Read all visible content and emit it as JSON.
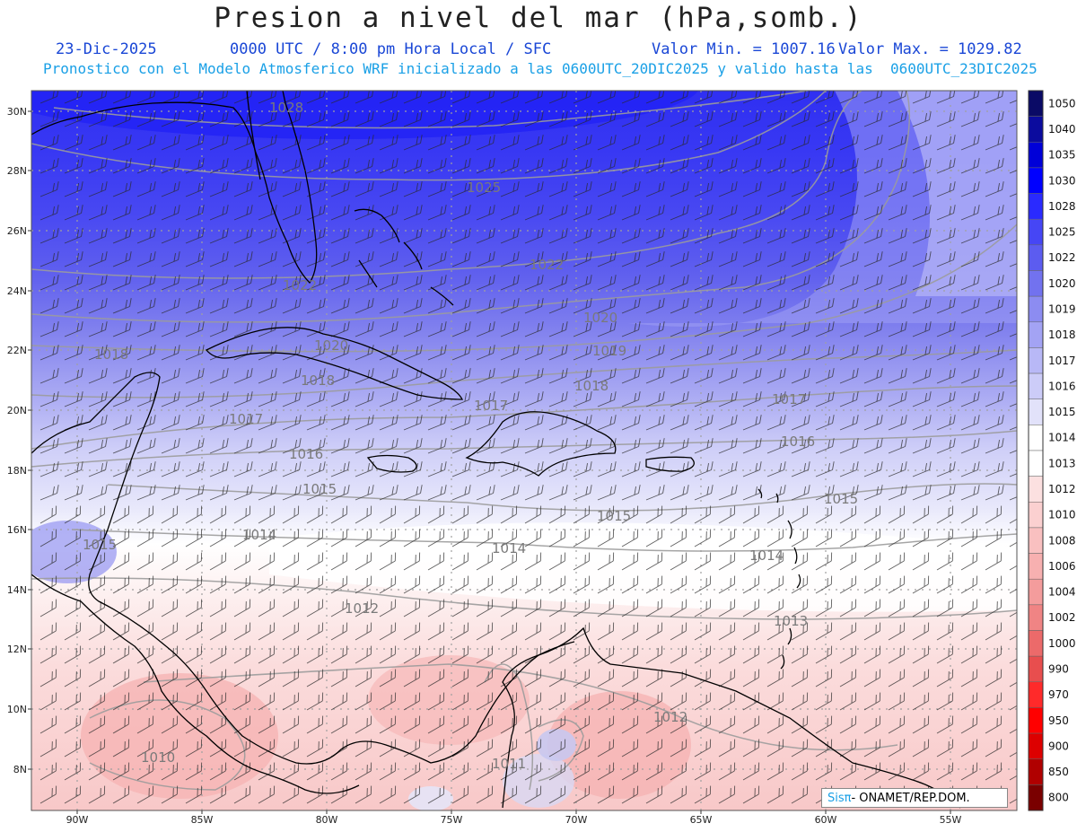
{
  "header": {
    "title": "Presion a nivel del mar (hPa,somb.)",
    "date": "23-Dic-2025",
    "time": "0000 UTC / 8:00 pm Hora Local / SFC",
    "valor_min": "Valor Min. = 1007.16",
    "valor_max": "Valor Max. = 1029.82",
    "description": "Pronostico con el Modelo Atmosferico WRF inicializado a las 0600UTC_20DIC2025 y valido hasta las  0600UTC_23DIC2025"
  },
  "map": {
    "lat_labels": [
      "30N",
      "28N",
      "26N",
      "24N",
      "22N",
      "20N",
      "18N",
      "16N",
      "14N",
      "12N",
      "10N",
      "8N"
    ],
    "lon_labels": [
      "90W",
      "85W",
      "80W",
      "75W",
      "70W",
      "65W",
      "60W",
      "55W"
    ],
    "isobar_labels": [
      {
        "text": "1028"
      },
      {
        "text": "1025"
      },
      {
        "text": "1022"
      },
      {
        "text": "1022"
      },
      {
        "text": "1020"
      },
      {
        "text": "1020"
      },
      {
        "text": "1019"
      },
      {
        "text": "1018"
      },
      {
        "text": "1018"
      },
      {
        "text": "1018"
      },
      {
        "text": "1017"
      },
      {
        "text": "1017"
      },
      {
        "text": "1017"
      },
      {
        "text": "1016"
      },
      {
        "text": "1016"
      },
      {
        "text": "1015"
      },
      {
        "text": "1015"
      },
      {
        "text": "1015"
      },
      {
        "text": "1015"
      },
      {
        "text": "1014"
      },
      {
        "text": "1014"
      },
      {
        "text": "1014"
      },
      {
        "text": "1013"
      },
      {
        "text": "1012"
      },
      {
        "text": "1012"
      },
      {
        "text": "1010"
      },
      {
        "text": "1011"
      }
    ]
  },
  "colorbar": {
    "levels": [
      "1050",
      "1040",
      "1035",
      "1030",
      "1028",
      "1025",
      "1022",
      "1020",
      "1019",
      "1018",
      "1017",
      "1016",
      "1015",
      "1014",
      "1013",
      "1012",
      "1010",
      "1008",
      "1006",
      "1004",
      "1002",
      "1000",
      "990",
      "970",
      "950",
      "900",
      "850",
      "800"
    ],
    "colors": [
      "#0a0a66",
      "#0b0b9e",
      "#0000d8",
      "#0000ff",
      "#2a2aff",
      "#4646f5",
      "#5c5cf0",
      "#7272ef",
      "#8c8cf1",
      "#a3a3f4",
      "#b8b8f6",
      "#ccccf8",
      "#e2e2fa",
      "#ffffff",
      "#ffffff",
      "#fce0e0",
      "#fbd0d0",
      "#f9c0c0",
      "#f7b0b0",
      "#f49c9c",
      "#f08484",
      "#ec6a6a",
      "#e84e4e",
      "#ff2a2a",
      "#ff0000",
      "#dd0000",
      "#b00000",
      "#7a0000"
    ]
  },
  "credit": {
    "logo": "SisTT",
    "text": "- ONAMET/REP.DOM."
  }
}
